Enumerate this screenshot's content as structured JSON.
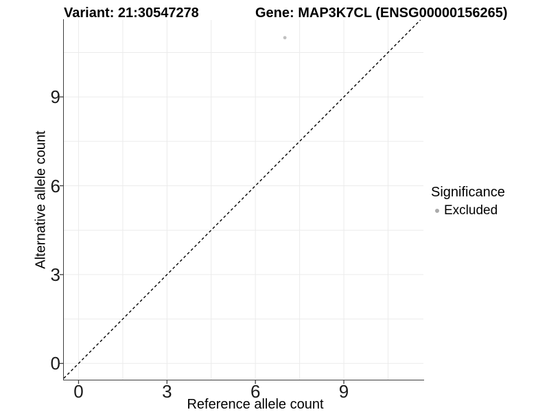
{
  "figure": {
    "title_left": "Variant: 21:30547278",
    "title_right": "Gene: MAP3K7CL (ENSG00000156265)"
  },
  "chart_data": {
    "type": "scatter",
    "xlabel": "Reference allele count",
    "ylabel": "Alternative allele count",
    "xlim": [
      -0.5,
      11.7
    ],
    "ylim": [
      -0.55,
      11.6
    ],
    "xticks": [
      0,
      3,
      6,
      9
    ],
    "yticks": [
      0,
      3,
      6,
      9
    ],
    "minor_xticks": [
      1.5,
      4.5,
      7.5,
      10.5
    ],
    "minor_yticks": [
      1.5,
      4.5,
      7.5,
      10.5
    ],
    "grid": "major+minor",
    "points": [
      {
        "x": 7,
        "y": 11,
        "significance": "Excluded"
      }
    ],
    "identity_line": {
      "equation": "y = x",
      "style": "dashed",
      "color": "#000000"
    },
    "legend": {
      "position": "right",
      "title": "Significance",
      "items": [
        {
          "label": "Excluded",
          "color": "#bdbdbd"
        }
      ]
    },
    "colors": {
      "point": "#c0c0c0",
      "legend_dot": "#ababab",
      "grid": "#ebebeb",
      "axis": "#3c3c3c",
      "tick_text": "#1a1a1a"
    }
  }
}
